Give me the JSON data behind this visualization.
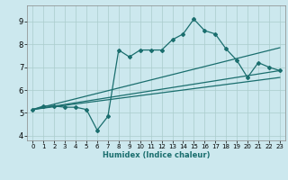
{
  "xlabel": "Humidex (Indice chaleur)",
  "bg_color": "#cce8ee",
  "grid_color": "#aacccc",
  "line_color": "#1a6e6e",
  "xlim": [
    -0.5,
    23.5
  ],
  "ylim": [
    3.8,
    9.7
  ],
  "xticks": [
    0,
    1,
    2,
    3,
    4,
    5,
    6,
    7,
    8,
    9,
    10,
    11,
    12,
    13,
    14,
    15,
    16,
    17,
    18,
    19,
    20,
    21,
    22,
    23
  ],
  "yticks": [
    4,
    5,
    6,
    7,
    8,
    9
  ],
  "line1_x": [
    0,
    1,
    2,
    3,
    4,
    5,
    6,
    7,
    8,
    9,
    10,
    11,
    12,
    13,
    14,
    15,
    16,
    17,
    18,
    19,
    20,
    21,
    22,
    23
  ],
  "line1_y": [
    5.15,
    5.3,
    5.3,
    5.25,
    5.25,
    5.15,
    4.25,
    4.85,
    7.75,
    7.45,
    7.75,
    7.75,
    7.75,
    8.2,
    8.45,
    9.1,
    8.6,
    8.45,
    7.8,
    7.3,
    6.55,
    7.2,
    7.0,
    6.85
  ],
  "line2_x": [
    0,
    23
  ],
  "line2_y": [
    5.15,
    7.85
  ],
  "line3_x": [
    0,
    23
  ],
  "line3_y": [
    5.15,
    6.85
  ],
  "line4_x": [
    0,
    23
  ],
  "line4_y": [
    5.15,
    6.55
  ]
}
